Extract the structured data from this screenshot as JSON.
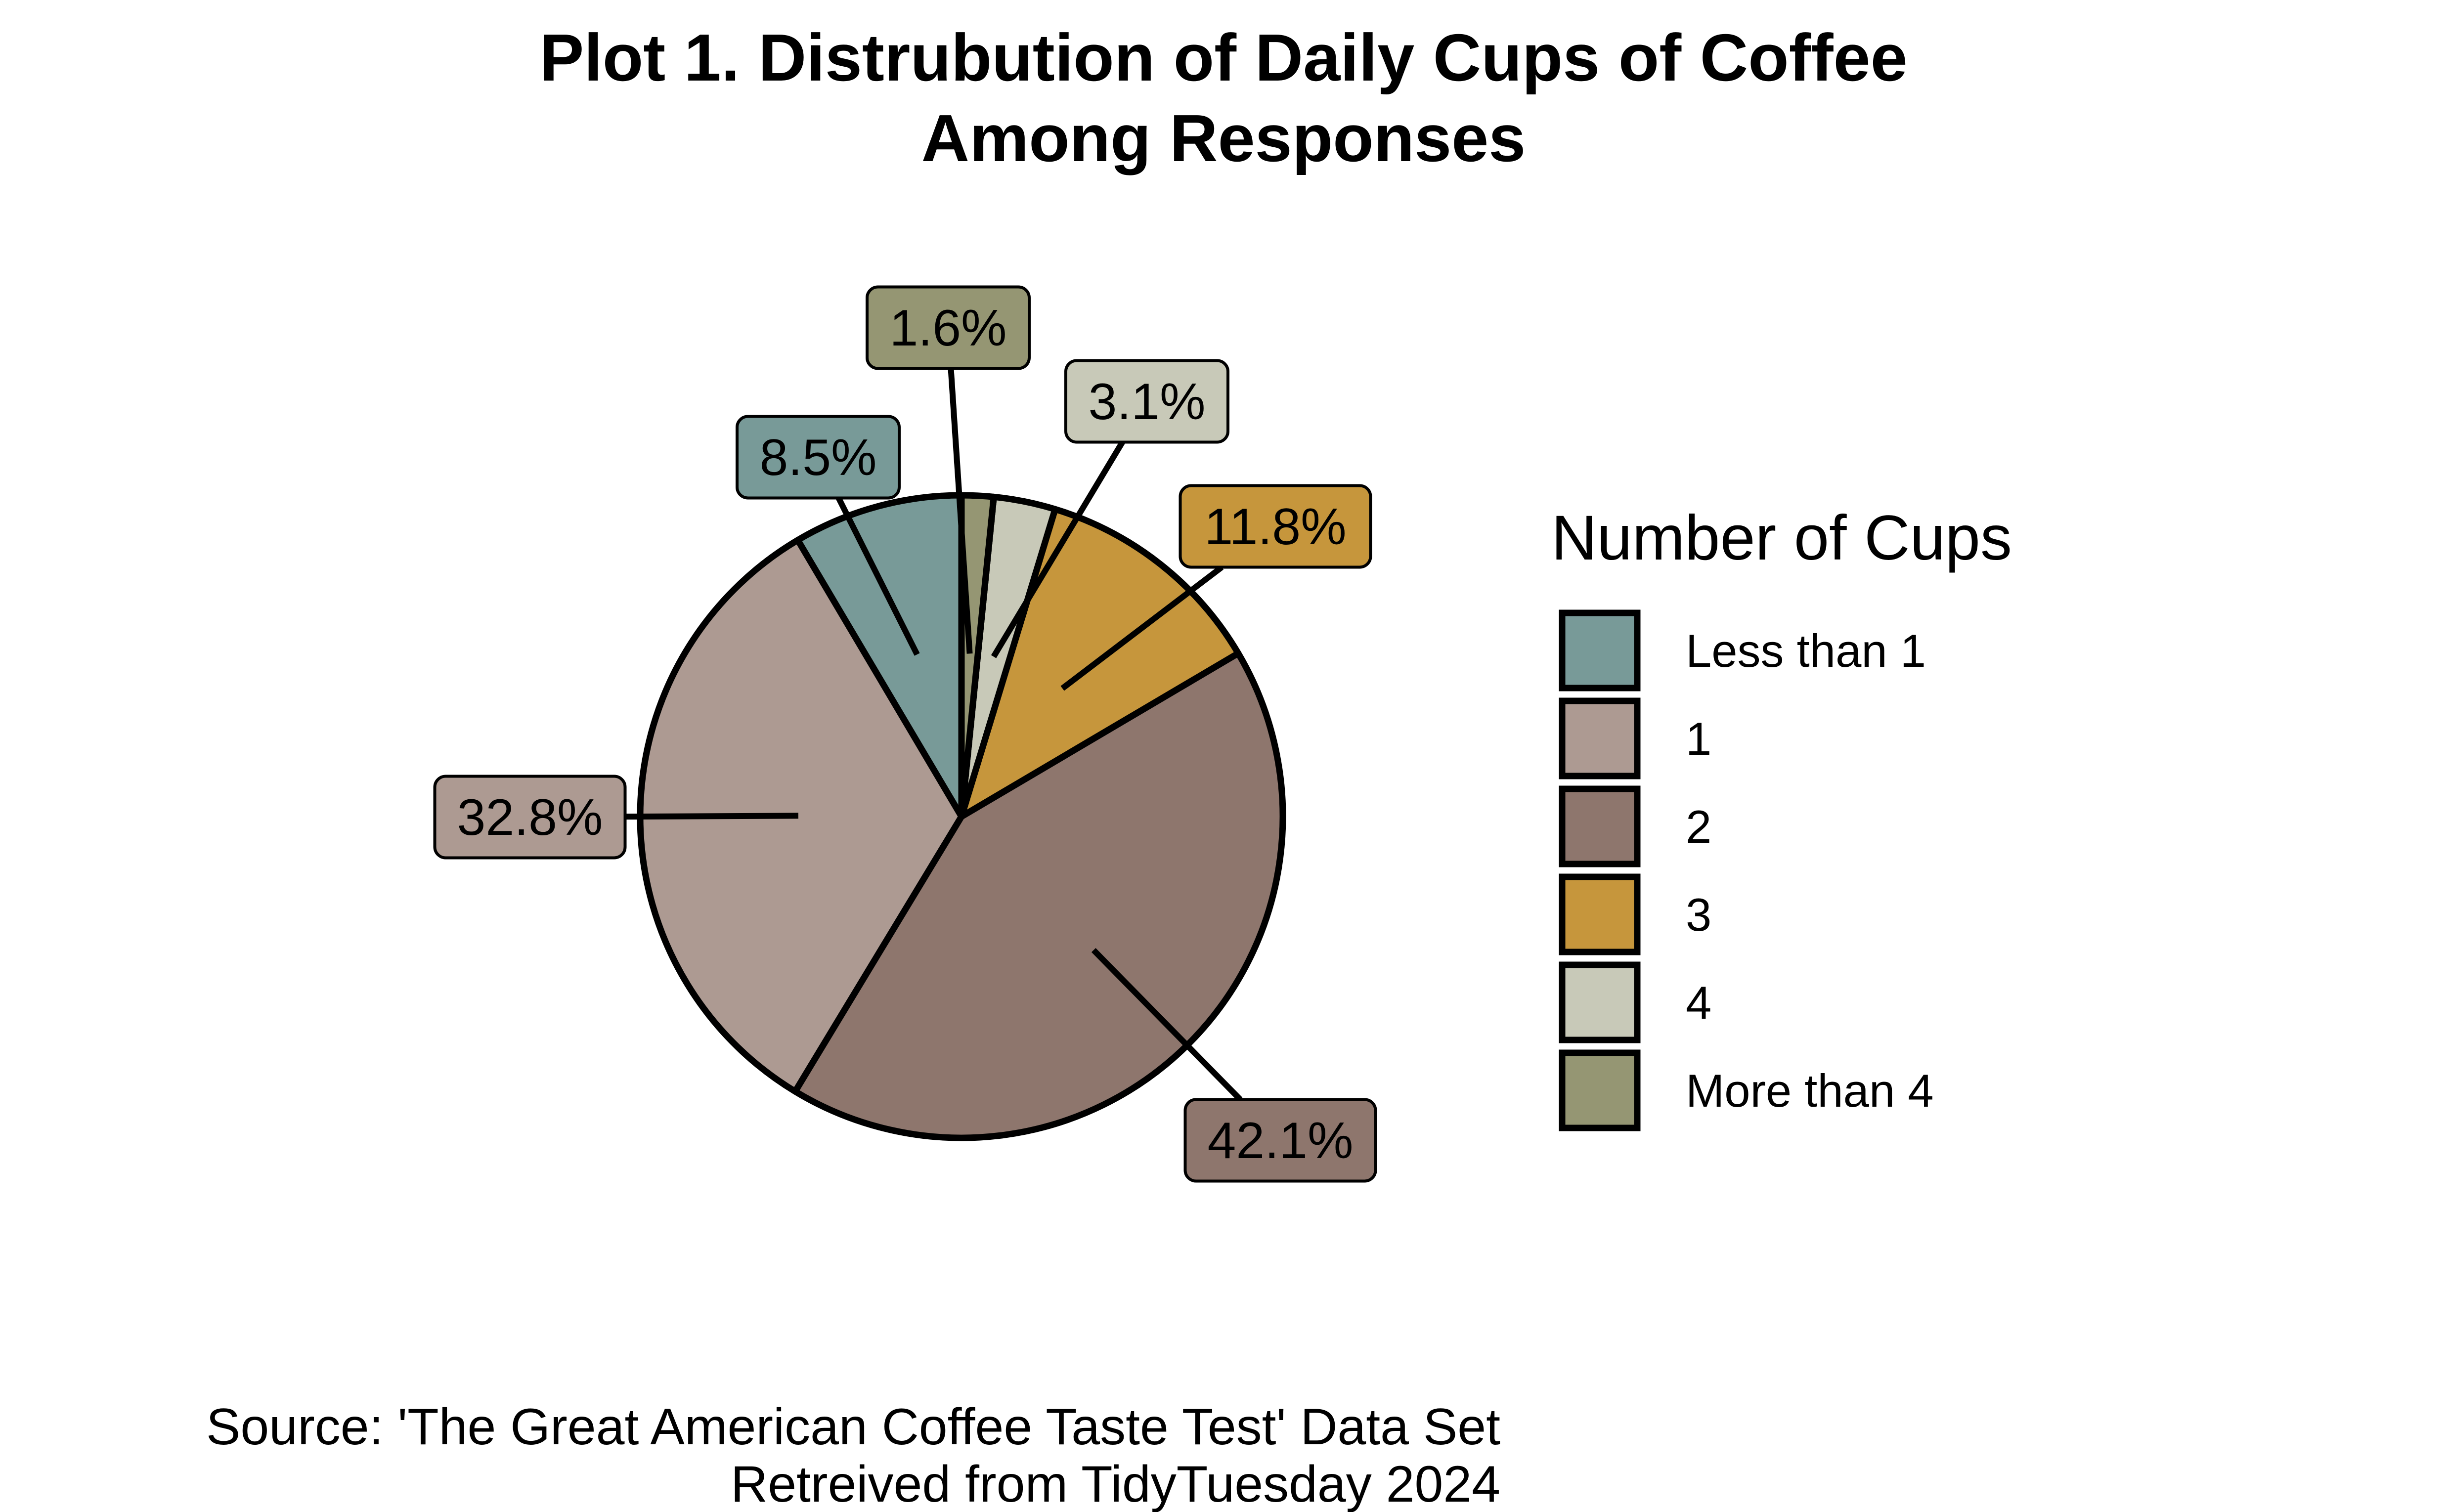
{
  "chart_data": {
    "type": "pie",
    "title_lines": [
      "Plot 1. Distrubution of Daily Cups of Coffee",
      "Among Responses"
    ],
    "legend": {
      "title": "Number of Cups",
      "position": "right"
    },
    "categories": [
      "Less than 1",
      "1",
      "2",
      "3",
      "4",
      "More than 4"
    ],
    "values": [
      8.5,
      32.8,
      42.1,
      11.8,
      3.1,
      1.6
    ],
    "value_labels": [
      "8.5%",
      "32.8%",
      "42.1%",
      "11.8%",
      "3.1%",
      "1.6%"
    ],
    "colors": [
      "#789a98",
      "#ad9a92",
      "#8e766d",
      "#c6963c",
      "#c8c9b8",
      "#959673"
    ],
    "caption_lines": [
      "Source: 'The Great American Coffee Taste Test' Data Set",
      "Retreived from TidyTuesday 2024"
    ]
  }
}
